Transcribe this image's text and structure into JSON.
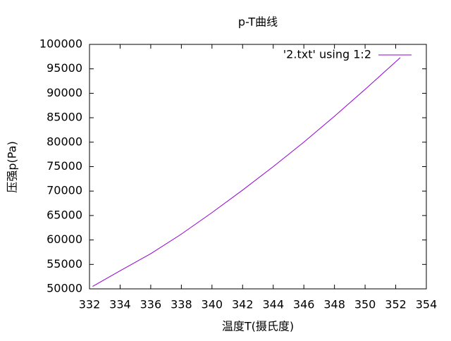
{
  "chart_data": {
    "type": "line",
    "title": "p-T曲线",
    "x_label": "温度T(摄氏度)",
    "y_label": "压强p(Pa)",
    "x": [
      332.2,
      334,
      336,
      338,
      340,
      342,
      344,
      346,
      348,
      350,
      352.3
    ],
    "series": [
      {
        "name": "'2.txt' using 1:2",
        "color": "#9400d3",
        "values": [
          50500,
          53700,
          57200,
          61200,
          65600,
          70200,
          75000,
          80000,
          85300,
          90800,
          97300
        ]
      }
    ],
    "xlim": [
      332,
      354
    ],
    "xticks": [
      332,
      334,
      336,
      338,
      340,
      342,
      344,
      346,
      348,
      350,
      352,
      354
    ],
    "ylim": [
      50000,
      100000
    ],
    "yticks": [
      50000,
      55000,
      60000,
      65000,
      70000,
      75000,
      80000,
      85000,
      90000,
      95000,
      100000
    ],
    "legend": "top-right"
  }
}
